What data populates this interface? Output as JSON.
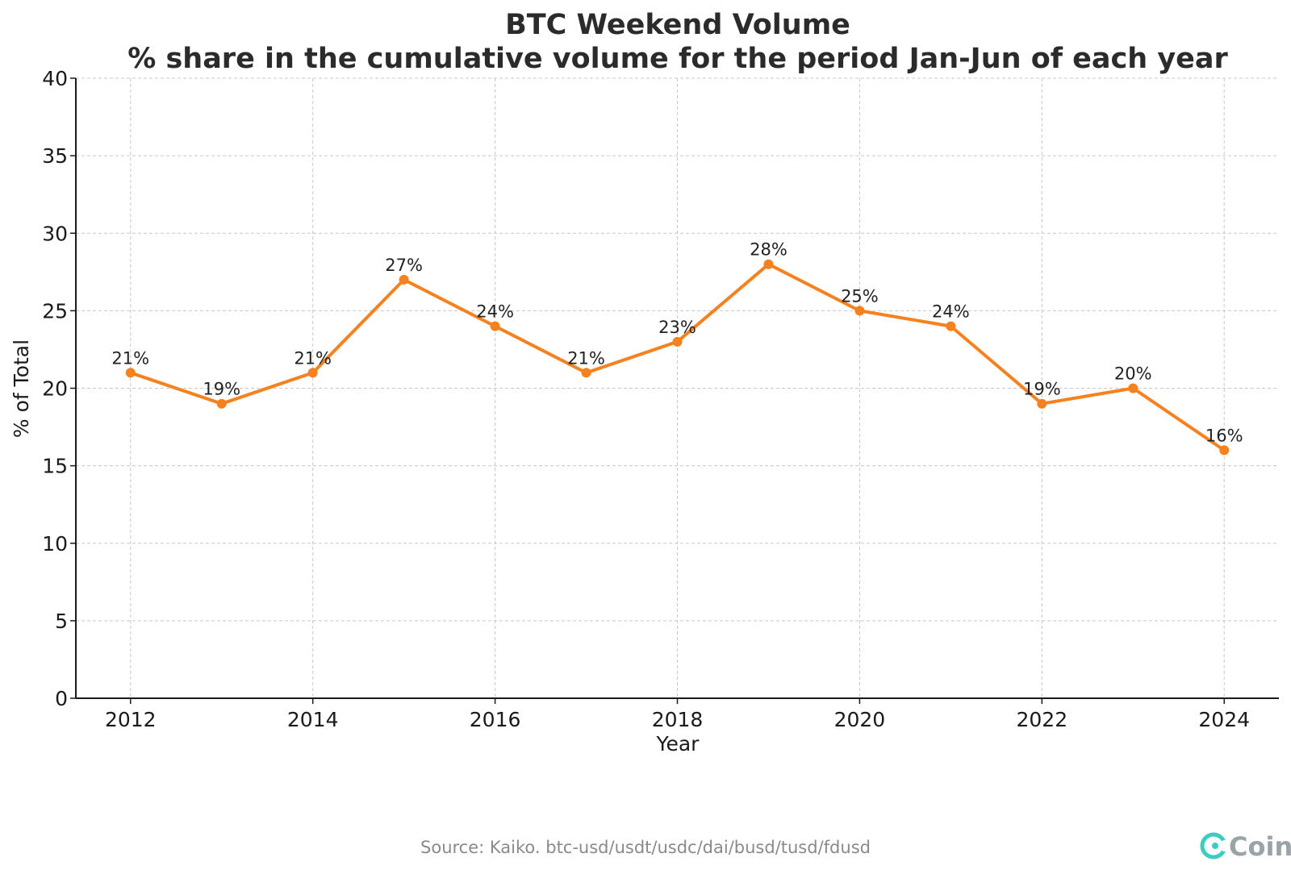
{
  "chart_data": {
    "type": "line",
    "title": "BTC Weekend Volume",
    "subtitle": "% share in the cumulative volume for the period Jan-Jun of each year",
    "xlabel": "Year",
    "ylabel": "% of Total",
    "x": [
      2012,
      2013,
      2014,
      2015,
      2016,
      2017,
      2018,
      2019,
      2020,
      2021,
      2022,
      2023,
      2024
    ],
    "series": [
      {
        "values": [
          21,
          19,
          21,
          27,
          24,
          21,
          23,
          28,
          25,
          24,
          19,
          20,
          16
        ],
        "data_labels": [
          "21%",
          "19%",
          "21%",
          "27%",
          "24%",
          "21%",
          "23%",
          "28%",
          "25%",
          "24%",
          "19%",
          "20%",
          "16%"
        ]
      }
    ],
    "xticks": [
      "2012",
      "2014",
      "2016",
      "2018",
      "2020",
      "2022",
      "2024"
    ],
    "yticks": [
      "0",
      "5",
      "10",
      "15",
      "20",
      "25",
      "30",
      "35",
      "40"
    ],
    "xlim": [
      2011.4,
      2024.6
    ],
    "ylim": [
      0,
      40
    ],
    "grid": true,
    "line_color": "#f5821f",
    "grid_color": "#c8c8c8",
    "source": "Source: Kaiko. btc-usd/usdt/usdc/dai/busd/tusd/fdusd",
    "logo": {
      "text": "CoinEx",
      "icon": "coinex-logo-icon",
      "color": "#3ccdc0"
    }
  }
}
